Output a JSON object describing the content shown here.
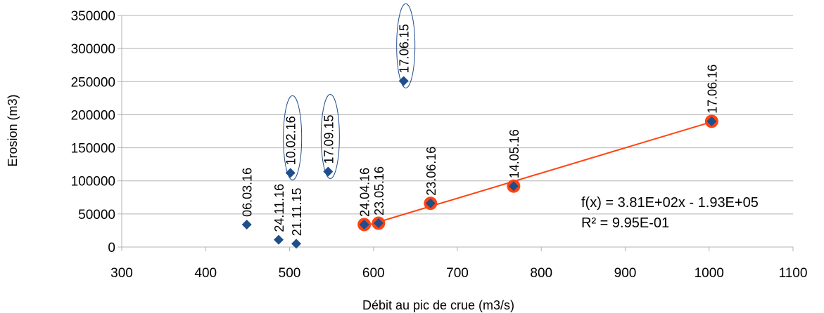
{
  "chart_data": {
    "type": "scatter",
    "xlabel": "Débit au pic de crue (m3/s)",
    "ylabel": "Erosion (m3)",
    "xlim": [
      300,
      1100
    ],
    "ylim": [
      0,
      350000
    ],
    "x_ticks": [
      "300",
      "400",
      "500",
      "600",
      "700",
      "800",
      "900",
      "1000",
      "1100"
    ],
    "y_ticks": [
      "0",
      "50000",
      "100000",
      "150000",
      "200000",
      "250000",
      "300000",
      "350000"
    ],
    "grid": "horizontal",
    "colors": {
      "point": "#1f4e8c",
      "trend": "#ff4411",
      "highlight": "#ff4411",
      "ellipse": "#1f4e8c",
      "grid": "#b3b3b3"
    },
    "points": [
      {
        "label": "06.03.16",
        "x": 449,
        "y": 34000,
        "highlight": false,
        "outlier": false
      },
      {
        "label": "24.11.16",
        "x": 487,
        "y": 11000,
        "highlight": false,
        "outlier": false
      },
      {
        "label": "21.11.15",
        "x": 508,
        "y": 5000,
        "highlight": false,
        "outlier": false
      },
      {
        "label": "10.02.16",
        "x": 501,
        "y": 112000,
        "highlight": false,
        "outlier": true
      },
      {
        "label": "17.09.15",
        "x": 546,
        "y": 114000,
        "highlight": false,
        "outlier": true
      },
      {
        "label": "17.06.15",
        "x": 636,
        "y": 251000,
        "highlight": false,
        "outlier": true
      },
      {
        "label": "24.04.16",
        "x": 589,
        "y": 34000,
        "highlight": true,
        "outlier": false
      },
      {
        "label": "23.05.16",
        "x": 606,
        "y": 36000,
        "highlight": true,
        "outlier": false
      },
      {
        "label": "23.06.16",
        "x": 668,
        "y": 66000,
        "highlight": true,
        "outlier": false
      },
      {
        "label": "14.05.16",
        "x": 767,
        "y": 92000,
        "highlight": true,
        "outlier": false
      },
      {
        "label": "17.06.16",
        "x": 1003,
        "y": 190000,
        "highlight": true,
        "outlier": false
      }
    ],
    "trendline": {
      "x_range": [
        589,
        1003
      ],
      "slope": 381,
      "intercept": -193000,
      "equation": "f(x) = 3.81E+02x - 1.93E+05",
      "r_squared": "R² = 9.95E-01"
    }
  }
}
